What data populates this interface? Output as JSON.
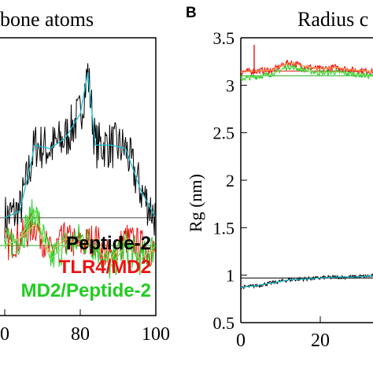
{
  "panel_left": {
    "title_fragment": "bone atoms",
    "legend": [
      "Peptide-2",
      "TLR4/MD2",
      "MD2/Peptide-2"
    ],
    "x_ticks": [
      "0",
      "80",
      "100"
    ]
  },
  "panel_right": {
    "panel_label": "B",
    "title_fragment": "Radius c",
    "ylabel": "Rg (nm)",
    "y_ticks": [
      "3.5",
      "3",
      "2.5",
      "2",
      "1.5",
      "1",
      "0.5"
    ],
    "x_ticks": [
      "0",
      "20"
    ]
  },
  "colors": {
    "black_series": "#000000",
    "red_series": "#ee1111",
    "green_series": "#22cc22",
    "cyan_avg": "#19c2d6",
    "grey_avg": "#555555"
  },
  "chart_data": [
    {
      "type": "line",
      "title": "",
      "xlim": [
        60,
        100
      ],
      "series": [
        {
          "name": "Peptide-2",
          "color": "#000000",
          "x": [
            60,
            64,
            68,
            72,
            76,
            80,
            82,
            84,
            88,
            92,
            96,
            100
          ],
          "y": [
            0.78,
            0.8,
            0.99,
            0.98,
            1.01,
            1.08,
            1.2,
            0.99,
            0.99,
            0.98,
            0.86,
            0.78
          ]
        },
        {
          "name": "TLR4/MD2",
          "color": "#ee1111",
          "x": [
            60,
            64,
            68,
            72,
            76,
            80,
            84,
            88,
            92,
            96,
            100
          ],
          "y": [
            0.7,
            0.72,
            0.76,
            0.68,
            0.72,
            0.7,
            0.72,
            0.66,
            0.72,
            0.7,
            0.68
          ]
        },
        {
          "name": "MD2/Peptide-2",
          "color": "#22cc22",
          "x": [
            60,
            64,
            68,
            72,
            76,
            80,
            84,
            88,
            92,
            96,
            100
          ],
          "y": [
            0.7,
            0.72,
            0.8,
            0.66,
            0.7,
            0.72,
            0.7,
            0.64,
            0.7,
            0.66,
            0.7
          ]
        }
      ]
    },
    {
      "type": "line",
      "title": "Radius c",
      "ylabel": "Rg (nm)",
      "ylim": [
        0.5,
        3.5
      ],
      "xlim": [
        0,
        40
      ],
      "series": [
        {
          "name": "TLR4/MD2",
          "color": "#ee1111",
          "x": [
            0,
            4,
            8,
            12,
            16,
            20,
            24,
            28,
            32,
            36,
            40
          ],
          "y": [
            3.14,
            3.15,
            3.16,
            3.24,
            3.2,
            3.17,
            3.19,
            3.16,
            3.15,
            3.14,
            3.13
          ]
        },
        {
          "name": "MD2/Peptide-2",
          "color": "#22cc22",
          "x": [
            0,
            4,
            8,
            12,
            16,
            20,
            24,
            28,
            32,
            36,
            40
          ],
          "y": [
            3.07,
            3.09,
            3.12,
            3.2,
            3.16,
            3.13,
            3.14,
            3.12,
            3.1,
            3.09,
            3.08
          ]
        },
        {
          "name": "Peptide-2",
          "color": "#000000",
          "x": [
            0,
            4,
            8,
            12,
            16,
            20,
            24,
            28,
            32,
            36,
            40
          ],
          "y": [
            0.87,
            0.89,
            0.92,
            0.95,
            0.96,
            0.97,
            0.98,
            0.98,
            0.99,
            1.0,
            1.01
          ]
        }
      ]
    }
  ]
}
